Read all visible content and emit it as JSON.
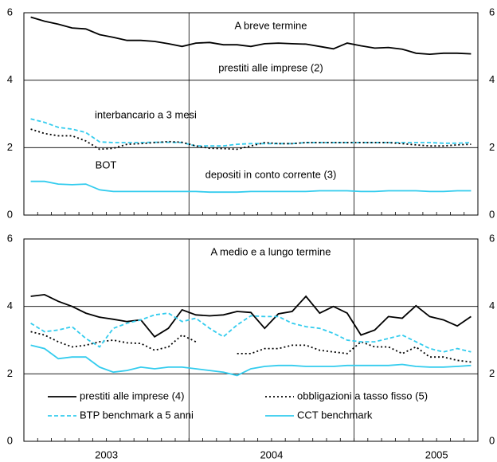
{
  "chart_data": [
    {
      "type": "line",
      "title": "A breve termine",
      "categories": [
        null,
        null,
        null,
        null,
        null,
        null,
        null,
        null,
        null,
        null,
        null,
        null,
        null,
        null,
        null,
        null,
        null,
        null,
        null,
        null,
        null,
        null,
        null,
        null,
        null,
        null,
        null,
        null,
        null,
        null,
        null,
        null,
        null
      ],
      "ylim": [
        0,
        6
      ],
      "yticks": [
        0,
        2,
        4,
        6
      ],
      "grid": true,
      "legend": "inline",
      "series": [
        {
          "name": "prestiti alle imprese (2)",
          "color": "#000000",
          "dash": "solid",
          "values": [
            5.87,
            5.75,
            5.66,
            5.55,
            5.52,
            5.35,
            5.27,
            5.18,
            5.18,
            5.15,
            5.08,
            5.0,
            5.1,
            5.12,
            5.05,
            5.05,
            5.0,
            5.08,
            5.1,
            5.08,
            5.07,
            5.0,
            4.93,
            5.1,
            5.02,
            4.95,
            4.97,
            4.92,
            4.8,
            4.77,
            4.8,
            4.8,
            4.78
          ]
        },
        {
          "name": "interbancario a 3 mesi",
          "color": "#33ccee",
          "dash": "dashed",
          "values": [
            2.85,
            2.75,
            2.6,
            2.55,
            2.45,
            2.17,
            2.15,
            2.15,
            2.15,
            2.16,
            2.16,
            2.15,
            2.05,
            2.05,
            2.05,
            2.1,
            2.12,
            2.12,
            2.12,
            2.12,
            2.15,
            2.15,
            2.15,
            2.15,
            2.15,
            2.15,
            2.15,
            2.15,
            2.15,
            2.15,
            2.13,
            2.13,
            2.15
          ]
        },
        {
          "name": "BOT",
          "color": "#000000",
          "dash": "dotted",
          "values": [
            2.55,
            2.42,
            2.35,
            2.35,
            2.2,
            1.95,
            1.98,
            2.1,
            2.12,
            2.15,
            2.18,
            2.16,
            2.05,
            1.98,
            1.97,
            1.95,
            2.05,
            2.15,
            2.12,
            2.12,
            2.15,
            2.15,
            2.15,
            2.15,
            2.15,
            2.15,
            2.15,
            2.12,
            2.08,
            2.05,
            2.05,
            2.08,
            2.1
          ]
        },
        {
          "name": "depositi in conto corrente (3)",
          "color": "#33ccee",
          "dash": "solid",
          "values": [
            1.0,
            1.0,
            0.92,
            0.9,
            0.92,
            0.75,
            0.7,
            0.7,
            0.7,
            0.7,
            0.7,
            0.7,
            0.7,
            0.68,
            0.68,
            0.68,
            0.7,
            0.7,
            0.7,
            0.7,
            0.7,
            0.72,
            0.72,
            0.72,
            0.7,
            0.7,
            0.72,
            0.72,
            0.72,
            0.7,
            0.7,
            0.72,
            0.72
          ]
        }
      ]
    },
    {
      "type": "line",
      "title": "A medio e a lungo termine",
      "categories": [
        null,
        null,
        null,
        null,
        null,
        "2003",
        null,
        null,
        null,
        null,
        null,
        null,
        null,
        null,
        null,
        null,
        null,
        "2004",
        null,
        null,
        null,
        null,
        null,
        null,
        null,
        null,
        null,
        null,
        null,
        "2005",
        null,
        null,
        null
      ],
      "ylim": [
        0,
        6
      ],
      "yticks": [
        0,
        2,
        4,
        6
      ],
      "grid": true,
      "legend": "lower left",
      "series": [
        {
          "name": "prestiti alle imprese (4)",
          "color": "#000000",
          "dash": "solid",
          "values": [
            4.3,
            4.35,
            4.15,
            4.0,
            3.8,
            3.68,
            3.62,
            3.55,
            3.6,
            3.1,
            3.35,
            3.9,
            3.75,
            3.72,
            3.75,
            3.85,
            3.82,
            3.35,
            3.78,
            3.85,
            4.3,
            3.8,
            4.0,
            3.8,
            3.15,
            3.3,
            3.7,
            3.65,
            4.02,
            3.7,
            3.6,
            3.42,
            3.7
          ]
        },
        {
          "name": "obbligazioni a tasso fisso (5)",
          "color": "#000000",
          "dash": "dotted",
          "values": [
            3.25,
            3.15,
            2.95,
            2.8,
            2.85,
            2.95,
            3.0,
            2.92,
            2.9,
            2.7,
            2.8,
            3.15,
            2.95,
            null,
            null,
            2.6,
            2.6,
            2.75,
            2.75,
            2.85,
            2.85,
            2.7,
            2.65,
            2.6,
            2.95,
            2.8,
            2.8,
            2.6,
            2.8,
            2.5,
            2.5,
            2.4,
            2.35
          ]
        },
        {
          "name": "BTP benchmark a 5 anni",
          "color": "#33ccee",
          "dash": "dashed",
          "values": [
            3.5,
            3.25,
            3.3,
            3.4,
            3.05,
            2.8,
            3.35,
            3.5,
            3.6,
            3.75,
            3.8,
            3.55,
            3.65,
            3.35,
            3.1,
            3.45,
            3.72,
            3.7,
            3.7,
            3.5,
            3.4,
            3.35,
            3.2,
            3.0,
            2.95,
            2.95,
            3.05,
            3.15,
            2.95,
            2.75,
            2.65,
            2.75,
            2.65
          ]
        },
        {
          "name": "CCT benchmark",
          "color": "#33ccee",
          "dash": "solid",
          "values": [
            2.85,
            2.75,
            2.45,
            2.5,
            2.5,
            2.2,
            2.05,
            2.1,
            2.2,
            2.15,
            2.2,
            2.2,
            2.15,
            2.1,
            2.05,
            1.95,
            2.15,
            2.22,
            2.25,
            2.25,
            2.22,
            2.22,
            2.22,
            2.25,
            2.25,
            2.25,
            2.25,
            2.28,
            2.22,
            2.2,
            2.2,
            2.22,
            2.25
          ]
        }
      ]
    }
  ]
}
